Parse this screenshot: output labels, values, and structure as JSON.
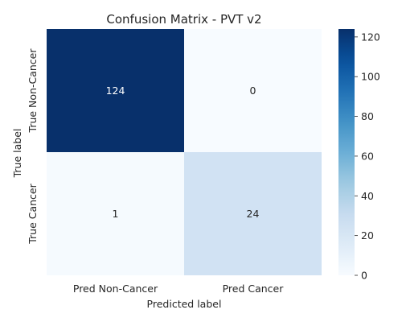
{
  "chart_data": {
    "type": "heatmap",
    "title": "Confusion Matrix - PVT v2",
    "xlabel": "Predicted label",
    "ylabel": "True label",
    "x_categories": [
      "Pred Non-Cancer",
      "Pred Cancer"
    ],
    "y_categories": [
      "True Non-Cancer",
      "True Cancer"
    ],
    "values": [
      [
        124,
        0
      ],
      [
        1,
        24
      ]
    ],
    "colorbar": {
      "min": 0,
      "max": 124,
      "ticks": [
        "0",
        "20",
        "40",
        "60",
        "80",
        "100",
        "120"
      ]
    },
    "colormap": "Blues",
    "grid": false
  }
}
